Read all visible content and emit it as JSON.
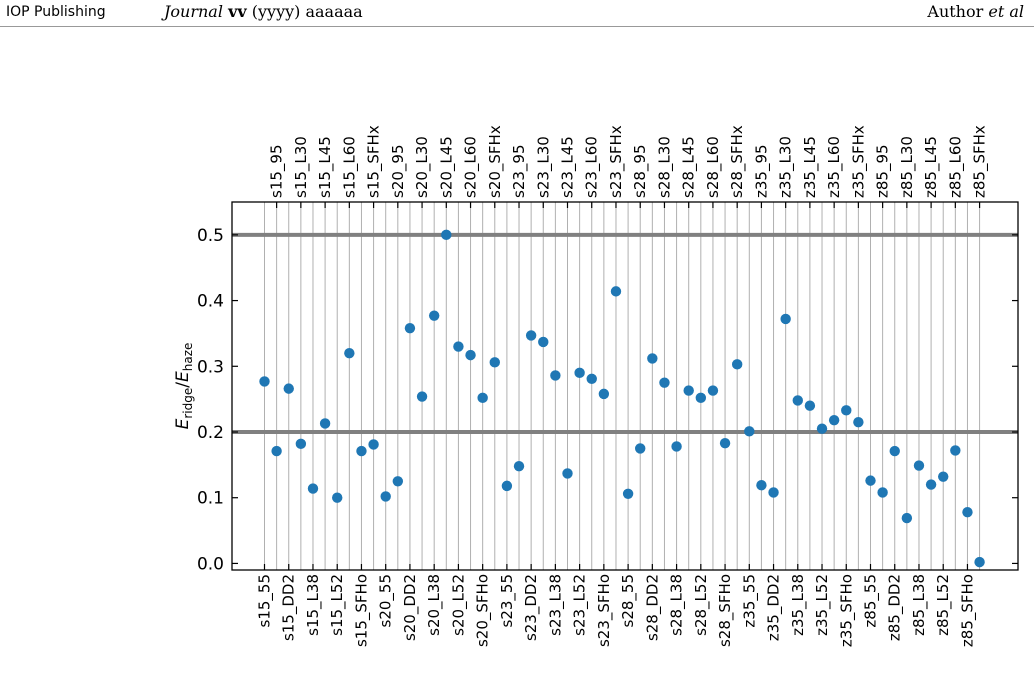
{
  "header": {
    "publisher": "IOP Publishing",
    "journal_name": "Journal",
    "journal_volume": "vv",
    "journal_rest": "(yyyy) aaaaaa",
    "author": "Author",
    "author_suffix": "et al"
  },
  "chart_data": {
    "type": "scatter",
    "ylabel_main": "E",
    "ylabel_num_sub": "ridge",
    "ylabel_den_sub": "haze",
    "ylim": [
      -0.01,
      0.55
    ],
    "yticks": [
      "0.0",
      "0.1",
      "0.2",
      "0.3",
      "0.4",
      "0.5"
    ],
    "ytick_values": [
      0.0,
      0.1,
      0.2,
      0.3,
      0.4,
      0.5
    ],
    "hlines": [
      0.2,
      0.5
    ],
    "grid": "vertical lines per model",
    "marker_color": "#1f77b4",
    "hline_color": "#808080",
    "categories": [
      "s15_55",
      "s15_95",
      "s15_DD2",
      "s15_L30",
      "s15_L38",
      "s15_L45",
      "s15_L52",
      "s15_L60",
      "s15_SFHo",
      "s15_SFHx",
      "s20_55",
      "s20_95",
      "s20_DD2",
      "s20_L30",
      "s20_L38",
      "s20_L45",
      "s20_L52",
      "s20_L60",
      "s20_SFHo",
      "s20_SFHx",
      "s23_55",
      "s23_95",
      "s23_DD2",
      "s23_L30",
      "s23_L38",
      "s23_L45",
      "s23_L52",
      "s23_L60",
      "s23_SFHo",
      "s23_SFHx",
      "s28_55",
      "s28_95",
      "s28_DD2",
      "s28_L30",
      "s28_L38",
      "s28_L45",
      "s28_L52",
      "s28_L60",
      "s28_SFHo",
      "s28_SFHx",
      "z35_55",
      "z35_95",
      "z35_DD2",
      "z35_L30",
      "z35_L38",
      "z35_L45",
      "z35_L52",
      "z35_L60",
      "z35_SFHo",
      "z35_SFHx",
      "z85_55",
      "z85_95",
      "z85_DD2",
      "z85_L30",
      "z85_L38",
      "z85_L45",
      "z85_L52",
      "z85_L60",
      "z85_SFHo",
      "z85_SFHx"
    ],
    "values": [
      0.277,
      0.171,
      0.266,
      0.182,
      0.114,
      0.213,
      0.1,
      0.32,
      0.171,
      0.181,
      0.102,
      0.125,
      0.358,
      0.254,
      0.377,
      0.5,
      0.33,
      0.317,
      0.252,
      0.306,
      0.118,
      0.148,
      0.347,
      0.337,
      0.286,
      0.137,
      0.29,
      0.281,
      0.258,
      0.414,
      0.106,
      0.175,
      0.312,
      0.275,
      0.178,
      0.263,
      0.252,
      0.263,
      0.183,
      0.303,
      0.201,
      0.119,
      0.108,
      0.372,
      0.248,
      0.24,
      0.205,
      0.218,
      0.233,
      0.215,
      0.126,
      0.108,
      0.171,
      0.069,
      0.149,
      0.12,
      0.132,
      0.172,
      0.078,
      0.002
    ]
  }
}
